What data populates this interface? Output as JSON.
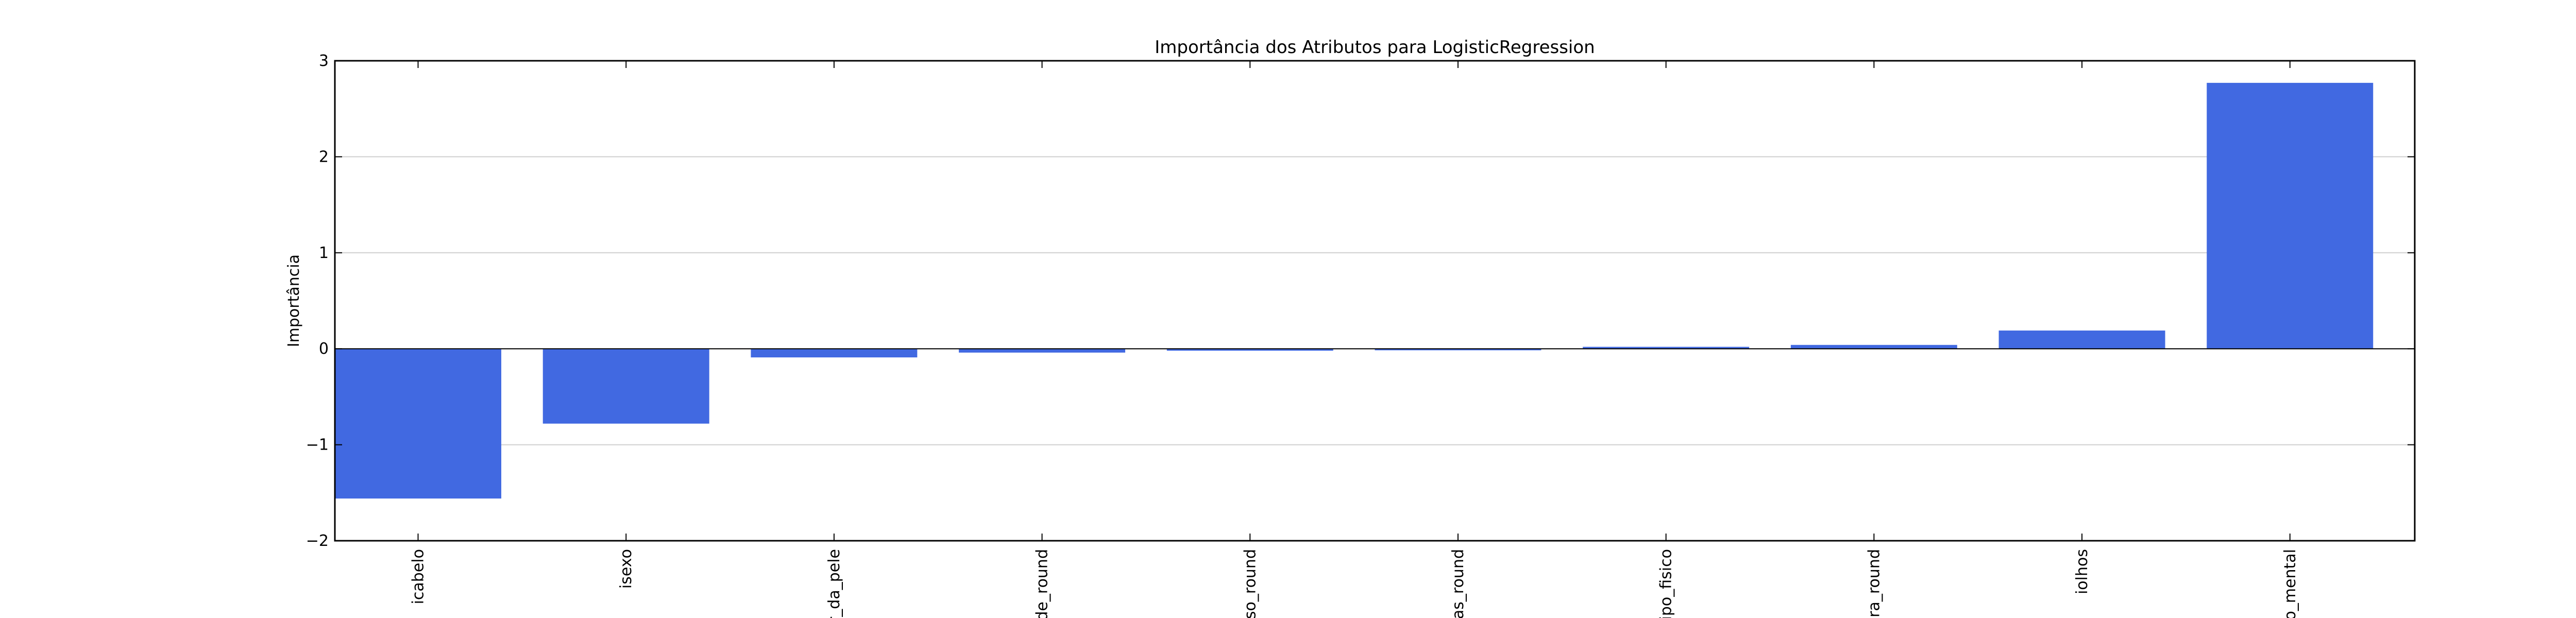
{
  "chart_data": {
    "type": "bar",
    "title": "Importância dos Atributos para LogisticRegression",
    "xlabel": "",
    "ylabel": "Importância",
    "ylim": [
      -2,
      3
    ],
    "yticks": [
      -2,
      -1,
      0,
      1,
      2,
      3
    ],
    "ytick_labels": [
      "−2",
      "−1",
      "0",
      "1",
      "2",
      "3"
    ],
    "grid": true,
    "bar_color": "#4169E1",
    "categories": [
      "icabelo",
      "isexo",
      "r_da_pele",
      "de_round",
      "eso_round",
      "ias_round",
      "tipo_fisico",
      "ura_round",
      "iolhos",
      "o_mental"
    ],
    "values": [
      -1.56,
      -0.78,
      -0.09,
      -0.04,
      -0.02,
      -0.01,
      0.02,
      0.04,
      0.19,
      2.77
    ]
  }
}
